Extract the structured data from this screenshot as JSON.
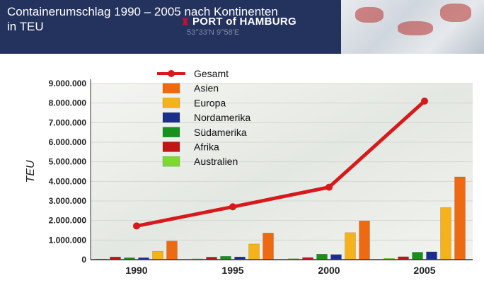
{
  "header": {
    "title": "Containerumschlag 1990 – 2005 nach Kontinenten\nin TEU",
    "logo_text": "PORT of HAMBURG",
    "logo_icon": "harbor-castle-icon",
    "coordinates": "53°33'N 9°58'E"
  },
  "colors": {
    "header_bg": "#24325e",
    "Gesamt": "#d7191c",
    "Asien": "#ee6a12",
    "Europa": "#f6b21a",
    "Nordamerika": "#1a2f8c",
    "Südamerika": "#16911e",
    "Afrika": "#c31515",
    "Australien": "#7dd92c"
  },
  "chart_data": {
    "type": "bar",
    "ylabel": "TEU",
    "xlabel": "",
    "ylim": [
      0,
      9000000
    ],
    "yticks": [
      "0",
      "1.000.000",
      "2.000.000",
      "3.000.000",
      "4.000.000",
      "5.000.000",
      "6.000.000",
      "7.000.000",
      "8.000.000",
      "9.000.000"
    ],
    "categories": [
      "1990",
      "1995",
      "2000",
      "2005"
    ],
    "legend": [
      "Gesamt",
      "Asien",
      "Europa",
      "Nordamerika",
      "Südamerika",
      "Afrika",
      "Australien"
    ],
    "legend_position": "top-left",
    "line_series": {
      "name": "Gesamt",
      "values": [
        1720000,
        2700000,
        3700000,
        8100000
      ]
    },
    "series": [
      {
        "name": "Australien",
        "values": [
          30000,
          40000,
          50000,
          70000
        ]
      },
      {
        "name": "Afrika",
        "values": [
          140000,
          130000,
          110000,
          150000
        ]
      },
      {
        "name": "Südamerika",
        "values": [
          100000,
          170000,
          280000,
          380000
        ]
      },
      {
        "name": "Nordamerika",
        "values": [
          100000,
          140000,
          260000,
          400000
        ]
      },
      {
        "name": "Europa",
        "values": [
          430000,
          800000,
          1380000,
          2660000
        ]
      },
      {
        "name": "Asien",
        "values": [
          950000,
          1360000,
          1980000,
          4230000
        ]
      }
    ]
  }
}
